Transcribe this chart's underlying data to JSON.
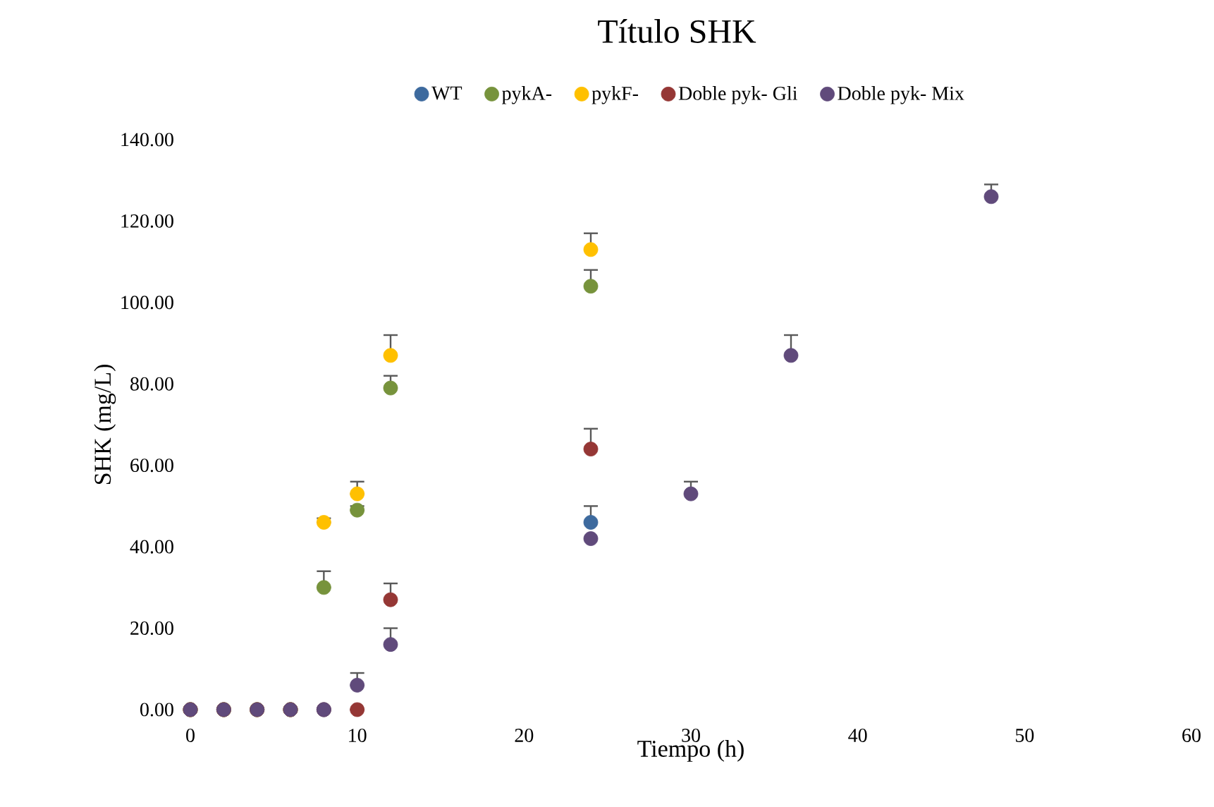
{
  "chart_data": {
    "type": "scatter",
    "title": "Título SHK",
    "xlabel": "Tiempo (h)",
    "ylabel": "SHK (mg/L)",
    "xlim": [
      0,
      60
    ],
    "xticks": [
      0,
      10,
      20,
      30,
      40,
      50,
      60
    ],
    "ylim": [
      0,
      140
    ],
    "yticks": [
      {
        "value": 0,
        "label": "0.00"
      },
      {
        "value": 20,
        "label": "20.00"
      },
      {
        "value": 40,
        "label": "40.00"
      },
      {
        "value": 60,
        "label": "60.00"
      },
      {
        "value": 80,
        "label": "80.00"
      },
      {
        "value": 100,
        "label": "100.00"
      },
      {
        "value": 120,
        "label": "120.00"
      },
      {
        "value": 140,
        "label": "140.00"
      }
    ],
    "grid": false,
    "legend": "top",
    "marker": "circle",
    "series": [
      {
        "name": "WT",
        "color": "#3d6a9e",
        "x": [
          0,
          2,
          4,
          6,
          8,
          24
        ],
        "values": [
          0,
          0,
          0,
          0,
          0,
          46
        ],
        "errors": [
          null,
          null,
          null,
          null,
          null,
          [
            46,
            50
          ]
        ]
      },
      {
        "name": "pykA-",
        "color": "#77933c",
        "x": [
          0,
          2,
          4,
          6,
          8,
          10,
          12,
          24
        ],
        "values": [
          0,
          0,
          0,
          0,
          30,
          49,
          79,
          104
        ],
        "errors": [
          null,
          null,
          null,
          null,
          [
            30,
            34
          ],
          [
            49,
            50
          ],
          [
            79,
            82
          ],
          [
            104,
            108
          ]
        ]
      },
      {
        "name": "pykF-",
        "color": "#ffc000",
        "x": [
          0,
          2,
          4,
          6,
          8,
          10,
          12,
          24
        ],
        "values": [
          0,
          0,
          0,
          0,
          46,
          53,
          87,
          113
        ],
        "errors": [
          null,
          null,
          null,
          null,
          [
            46,
            47
          ],
          [
            53,
            56
          ],
          [
            87,
            92
          ],
          [
            113,
            117
          ]
        ]
      },
      {
        "name": "Doble pyk- Gli",
        "color": "#953735",
        "x": [
          0,
          2,
          4,
          6,
          8,
          10,
          12,
          24
        ],
        "values": [
          0,
          0,
          0,
          0,
          0,
          0,
          27,
          64
        ],
        "errors": [
          null,
          null,
          null,
          null,
          null,
          null,
          [
            27,
            31
          ],
          [
            64,
            69
          ]
        ]
      },
      {
        "name": "Doble pyk- Mix",
        "color": "#604a7b",
        "x": [
          0,
          2,
          4,
          6,
          8,
          10,
          12,
          24,
          30,
          36,
          48
        ],
        "values": [
          0,
          0,
          0,
          0,
          0,
          6,
          16,
          42,
          53,
          87,
          126
        ],
        "errors": [
          null,
          null,
          null,
          null,
          null,
          [
            6,
            9
          ],
          [
            16,
            20
          ],
          null,
          [
            53,
            56
          ],
          [
            87,
            92
          ],
          [
            126,
            129
          ]
        ]
      }
    ]
  }
}
